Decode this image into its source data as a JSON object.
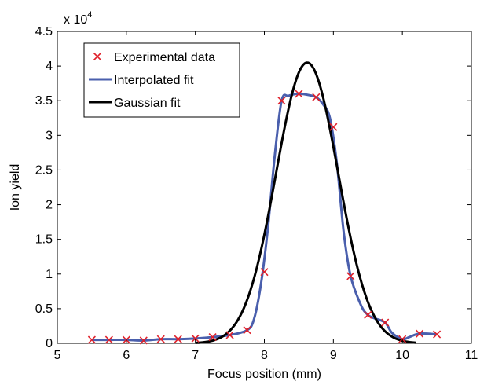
{
  "chart_data": {
    "type": "line",
    "title": "",
    "xlabel": "Focus position (mm)",
    "ylabel": "Ion yield",
    "xlim": [
      5,
      11
    ],
    "ylim": [
      0,
      4.5
    ],
    "y_multiplier": "x 10",
    "y_multiplier_exponent": "4",
    "x_ticks": [
      5,
      6,
      7,
      8,
      9,
      10,
      11
    ],
    "x_tick_labels": [
      "5",
      "6",
      "7",
      "8",
      "9",
      "10",
      "11"
    ],
    "y_ticks": [
      0,
      0.5,
      1,
      1.5,
      2,
      2.5,
      3,
      3.5,
      4,
      4.5
    ],
    "y_tick_labels": [
      "0",
      "0.5",
      "1",
      "1.5",
      "2",
      "2.5",
      "3",
      "3.5",
      "4",
      "4.5"
    ],
    "grid": false,
    "legend_position": "top-left",
    "series": [
      {
        "name": "Experimental data",
        "style": "markers",
        "color": "#e0202a",
        "x": [
          5.5,
          5.75,
          6.0,
          6.25,
          6.5,
          6.75,
          7.0,
          7.25,
          7.5,
          7.75,
          8.0,
          8.25,
          8.5,
          8.75,
          9.0,
          9.25,
          9.5,
          9.75,
          10.0,
          10.25,
          10.5
        ],
        "y": [
          0.05,
          0.05,
          0.05,
          0.04,
          0.06,
          0.06,
          0.07,
          0.09,
          0.12,
          0.19,
          1.03,
          3.5,
          3.6,
          3.55,
          3.12,
          0.97,
          0.41,
          0.3,
          0.06,
          0.14,
          0.13
        ]
      },
      {
        "name": "Interpolated fit",
        "style": "line",
        "color": "#4a5fad",
        "x": [
          5.5,
          5.75,
          6.0,
          6.25,
          6.5,
          6.75,
          7.0,
          7.25,
          7.5,
          7.75,
          7.85,
          7.95,
          8.05,
          8.15,
          8.25,
          8.35,
          8.5,
          8.65,
          8.75,
          8.85,
          8.95,
          9.05,
          9.15,
          9.25,
          9.4,
          9.5,
          9.6,
          9.75,
          9.85,
          10.0,
          10.1,
          10.25,
          10.5
        ],
        "y": [
          0.05,
          0.05,
          0.05,
          0.04,
          0.06,
          0.06,
          0.07,
          0.09,
          0.12,
          0.19,
          0.35,
          0.85,
          1.65,
          2.7,
          3.5,
          3.57,
          3.6,
          3.58,
          3.55,
          3.45,
          3.25,
          2.6,
          1.6,
          0.97,
          0.55,
          0.41,
          0.36,
          0.3,
          0.15,
          0.06,
          0.09,
          0.14,
          0.13
        ]
      },
      {
        "name": "Gaussian fit",
        "style": "line",
        "color": "#000000",
        "gaussian": {
          "amplitude": 4.05,
          "mean": 8.62,
          "sigma": 0.45
        },
        "x_range": [
          7.0,
          10.2
        ]
      }
    ]
  }
}
